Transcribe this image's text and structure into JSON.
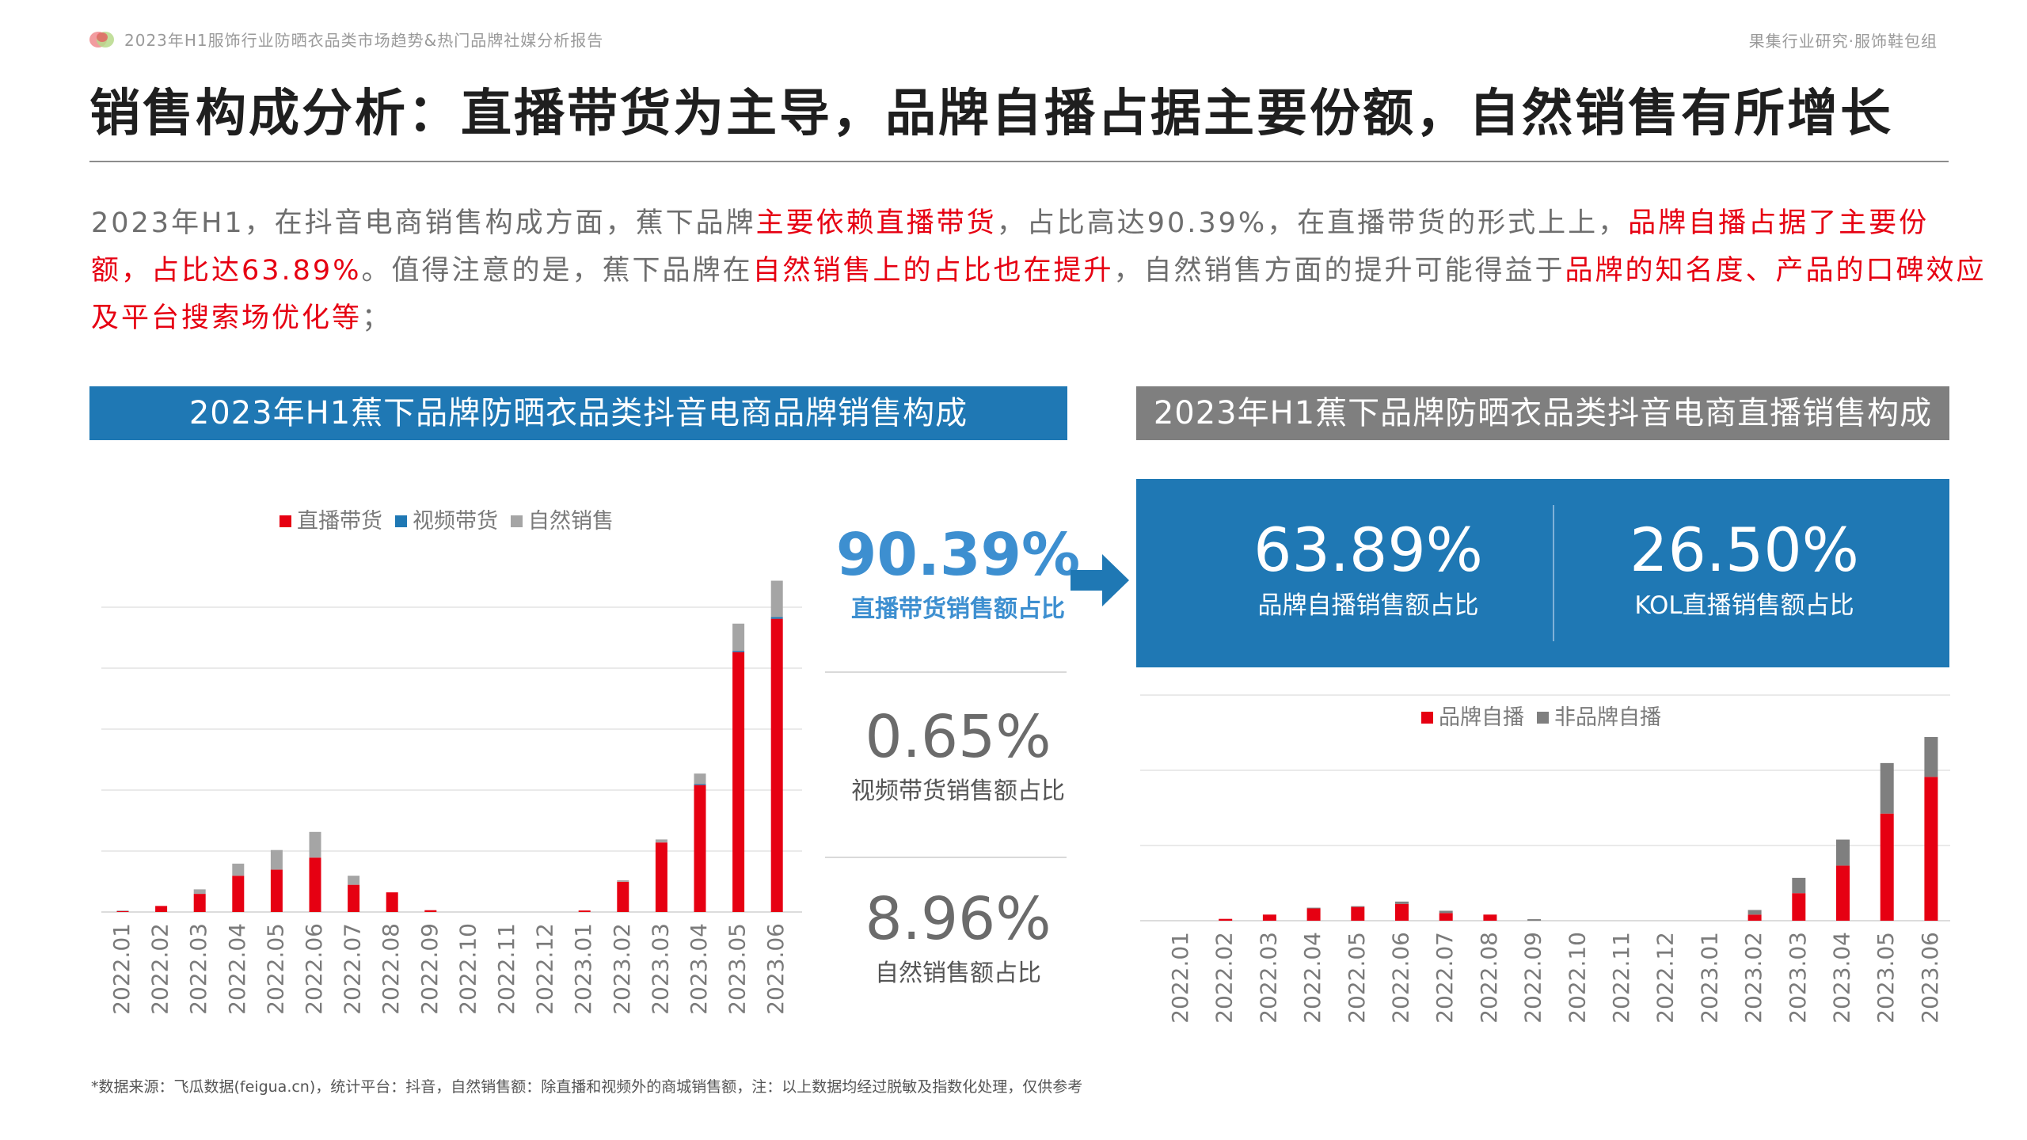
{
  "header": {
    "report_title": "2023年H1服饰行业防晒衣品类市场趋势&热门品牌社媒分析报告",
    "org": "果集行业研究·服饰鞋包组"
  },
  "title": "销售构成分析：直播带货为主导，品牌自播占据主要份额，自然销售有所增长",
  "intro": {
    "p1": "2023年H1，在抖音电商销售构成方面，蕉下品牌",
    "r1": "主要依赖直播带货",
    "p2": "，占比高达90.39%，在直播带货的形式上上，",
    "r2": "品牌自播占据了主要份额，占比达63.89%",
    "p3": "。值得注意的是，蕉下品牌在",
    "r3": "自然销售上的占比也在提升",
    "p4": "，自然销售方面的提升可能得益于",
    "r4": "品牌的知名度、产品的口碑效应及平台搜索场优化等",
    "p5": "；"
  },
  "left_section_title": "2023年H1蕉下品牌防晒衣品类抖音电商品牌销售构成",
  "right_section_title": "2023年H1蕉下品牌防晒衣品类抖音电商直播销售构成",
  "stats": [
    {
      "value": "90.39%",
      "label": "直播带货销售额占比"
    },
    {
      "value": "0.65%",
      "label": "视频带货销售额占比"
    },
    {
      "value": "8.96%",
      "label": "自然销售额占比"
    }
  ],
  "kpis": [
    {
      "value": "63.89%",
      "label": "品牌自播销售额占比"
    },
    {
      "value": "26.50%",
      "label": "KOL直播销售额占比"
    }
  ],
  "footnote": "*数据来源：飞瓜数据(feigua.cn)，统计平台：抖音，自然销售额：除直播和视频外的商城销售额，注：以上数据均经过脱敏及指数化处理，仅供参考",
  "colors": {
    "red": "#e60012",
    "blue": "#1f78b4",
    "grey": "#a5a5a5",
    "darkgrey": "#7f7f7f",
    "accent_blue": "#3d8fd0"
  },
  "chart_data": [
    {
      "type": "bar",
      "stacked": true,
      "categories": [
        "2022.01",
        "2022.02",
        "2022.03",
        "2022.04",
        "2022.05",
        "2022.06",
        "2022.07",
        "2022.08",
        "2022.09",
        "2022.10",
        "2022.11",
        "2022.12",
        "2023.01",
        "2023.02",
        "2023.03",
        "2023.04",
        "2023.05",
        "2023.06"
      ],
      "series": [
        {
          "name": "直播带货",
          "color": "#e60012",
          "values": [
            0.3,
            2,
            6,
            12,
            14,
            18,
            9,
            6.5,
            0.6,
            0,
            0,
            0,
            0.5,
            10,
            23,
            42,
            86,
            97
          ]
        },
        {
          "name": "视频带货",
          "color": "#1f78b4",
          "values": [
            0,
            0,
            0,
            0,
            0,
            0,
            0,
            0,
            0,
            0,
            0,
            0,
            0,
            0,
            0,
            0.3,
            0.4,
            0.6
          ]
        },
        {
          "name": "自然销售",
          "color": "#a5a5a5",
          "values": [
            0.2,
            0,
            1.5,
            4,
            6.5,
            8.5,
            3,
            0,
            0,
            0,
            0,
            0,
            0,
            0.5,
            1,
            3.5,
            9,
            12
          ]
        }
      ],
      "ylim": [
        0,
        110
      ],
      "legend": "top",
      "grid": true
    },
    {
      "type": "bar",
      "stacked": true,
      "categories": [
        "2022.01",
        "2022.02",
        "2022.03",
        "2022.04",
        "2022.05",
        "2022.06",
        "2022.07",
        "2022.08",
        "2022.09",
        "2022.10",
        "2022.11",
        "2022.12",
        "2023.01",
        "2023.02",
        "2023.03",
        "2023.04",
        "2023.05",
        "2023.06"
      ],
      "series": [
        {
          "name": "品牌自播",
          "color": "#e60012",
          "values": [
            0,
            1.2,
            4,
            8,
            9,
            11,
            5,
            4,
            0,
            0,
            0,
            0,
            0,
            4,
            18,
            36,
            70,
            94
          ]
        },
        {
          "name": "非品牌自播",
          "color": "#7f7f7f",
          "values": [
            0,
            0,
            0,
            0.5,
            0.5,
            1.5,
            1.5,
            0,
            1,
            0,
            0,
            0,
            0,
            3,
            10,
            17,
            33,
            26
          ]
        }
      ],
      "ylim": [
        0,
        150
      ],
      "legend": "top",
      "grid": true
    }
  ]
}
